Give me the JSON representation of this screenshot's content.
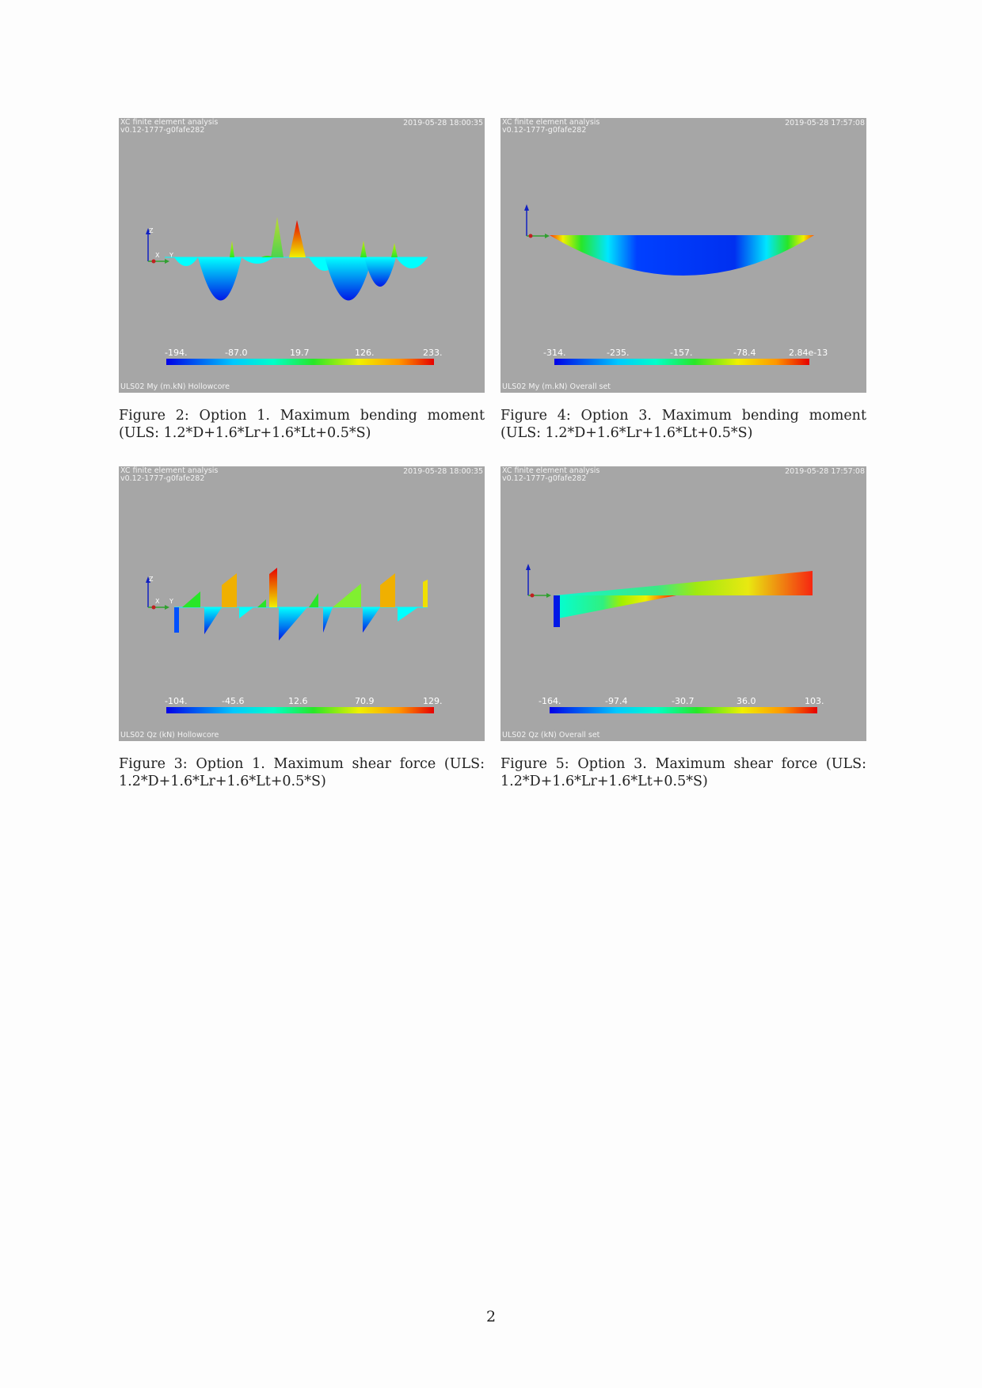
{
  "figures": [
    {
      "header_line1": "XC finite element analysis",
      "header_line2": "v0.12-1777-g0fafe282",
      "timestamp": "2019-05-28 18:00:35",
      "footer": "ULS02 My (m.kN) Hollowcore",
      "colorbar_ticks": [
        "-194.",
        "-87.0",
        "19.7",
        "126.",
        "233."
      ],
      "axis_labels": [
        "Z",
        "X",
        "Y"
      ],
      "caption": "Figure 2: Option 1. Maximum bending moment (ULS: 1.2*D+1.6*Lr+1.6*Lt+0.5*S)"
    },
    {
      "header_line1": "XC finite element analysis",
      "header_line2": "v0.12-1777-g0fafe282",
      "timestamp": "2019-05-28 17:57:08",
      "footer": "ULS02 My (m.kN) Overall set",
      "colorbar_ticks": [
        "-314.",
        "-235.",
        "-157.",
        "-78.4",
        "2.84e-13"
      ],
      "caption": "Figure 4: Option 3. Maximum bending moment (ULS: 1.2*D+1.6*Lr+1.6*Lt+0.5*S)"
    },
    {
      "header_line1": "XC finite element analysis",
      "header_line2": "v0.12-1777-g0fafe282",
      "timestamp": "2019-05-28 18:00:35",
      "footer": "ULS02 Qz (kN) Hollowcore",
      "colorbar_ticks": [
        "-104.",
        "-45.6",
        "12.6",
        "70.9",
        "129."
      ],
      "axis_labels": [
        "Z",
        "X",
        "Y"
      ],
      "caption": "Figure 3: Option 1. Maximum shear force (ULS: 1.2*D+1.6*Lr+1.6*Lt+0.5*S)"
    },
    {
      "header_line1": "XC finite element analysis",
      "header_line2": "v0.12-1777-g0fafe282",
      "timestamp": "2019-05-28 17:57:08",
      "footer": "ULS02 Qz (kN) Overall set",
      "colorbar_ticks": [
        "-164.",
        "-97.4",
        "-30.7",
        "36.0",
        "103."
      ],
      "caption": "Figure 5: Option 3. Maximum shear force (ULS: 1.2*D+1.6*Lr+1.6*Lt+0.5*S)"
    }
  ],
  "page_number": "2"
}
